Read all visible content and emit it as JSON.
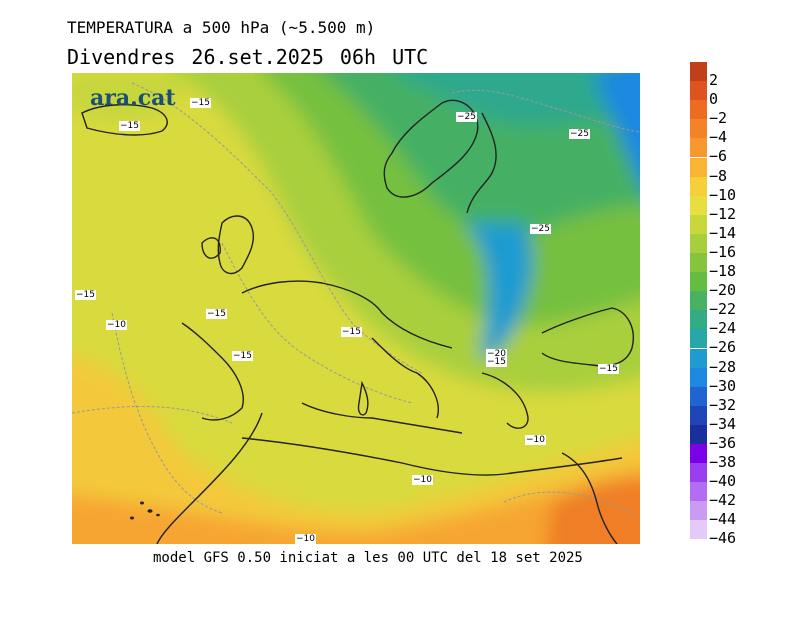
{
  "title": {
    "line1": "TEMPERATURA a 500 hPa (~5.500 m)",
    "line2": "Divendres  26.set.2025 06h UTC"
  },
  "brand": "ara.cat",
  "footer": "model GFS 0.50 iniciat a les 00 UTC del 18 set 2025",
  "legend": {
    "bins": [
      {
        "label": "2",
        "color": "#c1401c"
      },
      {
        "label": "0",
        "color": "#df5320"
      },
      {
        "label": "−2",
        "color": "#ee6b22"
      },
      {
        "label": "−4",
        "color": "#f48228"
      },
      {
        "label": "−6",
        "color": "#f6982d"
      },
      {
        "label": "−8",
        "color": "#f8b432"
      },
      {
        "label": "−10",
        "color": "#f6d03b"
      },
      {
        "label": "−12",
        "color": "#e6df3f"
      },
      {
        "label": "−14",
        "color": "#c8d83c"
      },
      {
        "label": "−16",
        "color": "#a7ce3d"
      },
      {
        "label": "−18",
        "color": "#86c43f"
      },
      {
        "label": "−20",
        "color": "#64bc43"
      },
      {
        "label": "−22",
        "color": "#47b261"
      },
      {
        "label": "−24",
        "color": "#33ac85"
      },
      {
        "label": "−26",
        "color": "#27a7a9"
      },
      {
        "label": "−28",
        "color": "#1f9bd1"
      },
      {
        "label": "−30",
        "color": "#1e88e0"
      },
      {
        "label": "−32",
        "color": "#2064d2"
      },
      {
        "label": "−34",
        "color": "#1f46b8"
      },
      {
        "label": "−36",
        "color": "#1a2f9c"
      },
      {
        "label": "−38",
        "color": "#7b00e8"
      },
      {
        "label": "−40",
        "color": "#9b3ef0"
      },
      {
        "label": "−42",
        "color": "#b36df2"
      },
      {
        "label": "−44",
        "color": "#c99bf3"
      },
      {
        "label": "−46",
        "color": "#e4cbf7"
      }
    ]
  },
  "contour_labels": [
    "−15",
    "−15",
    "−25",
    "−25",
    "−25",
    "−15",
    "−10",
    "−15",
    "−15",
    "−15",
    "−20",
    "−15",
    "−15",
    "−10",
    "−10",
    "−10"
  ]
}
